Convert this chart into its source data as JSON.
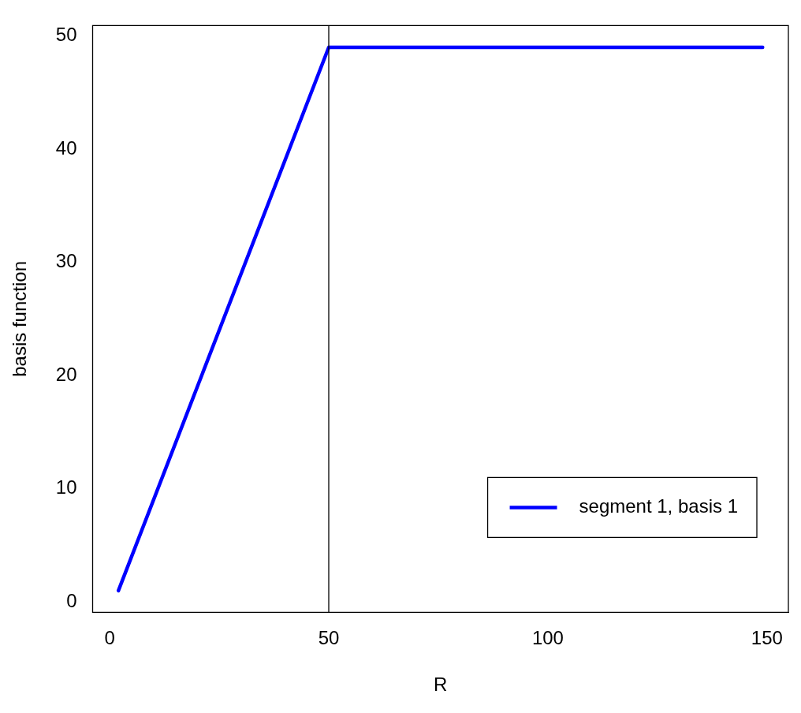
{
  "chart_data": {
    "type": "line",
    "xlabel": "R",
    "ylabel": "basis function",
    "series": [
      {
        "name": "segment 1, basis 1",
        "color": "#0000ff",
        "x": [
          2,
          50,
          149
        ],
        "values": [
          1,
          49,
          49
        ]
      }
    ],
    "xlim": [
      -3.88,
      154.88
    ],
    "ylim": [
      -0.92,
      50.92
    ],
    "xticks": [
      0,
      50,
      100,
      150
    ],
    "yticks": [
      0,
      10,
      20,
      30,
      40,
      50
    ],
    "ref_lines": [
      {
        "axis": "x",
        "value": 50,
        "color": "#000000"
      }
    ],
    "grid": false,
    "legend": "bottom right",
    "marker": "none",
    "line_style": "solid"
  }
}
